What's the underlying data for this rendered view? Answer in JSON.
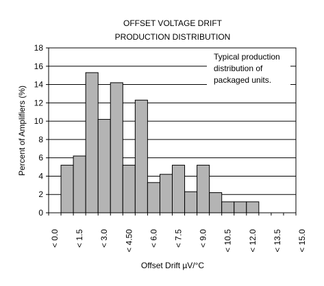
{
  "chart_data": {
    "type": "bar",
    "title": [
      "OFFSET VOLTAGE DRIFT",
      "PRODUCTION DISTRIBUTION"
    ],
    "xlabel": "Offset Drift µV/°C",
    "ylabel": "Percent of Amplifiers (%)",
    "ylim": [
      0,
      18
    ],
    "yticks": [
      0,
      2,
      4,
      6,
      8,
      10,
      12,
      14,
      16,
      18
    ],
    "grid": "horizontal",
    "bar_fill": "#b4b4b4",
    "bar_stroke": "#000000",
    "xtick_labels": [
      "< 0.0",
      "< 1.5",
      "< 3.0",
      "< 4.50",
      "< 6.0",
      "< 7.5",
      "< 9.0",
      "< 10.5",
      "< 12.0",
      "< 13.5",
      "< 15.0"
    ],
    "bins": 20,
    "values": [
      5.2,
      6.2,
      15.3,
      10.2,
      14.2,
      5.2,
      12.3,
      3.3,
      4.2,
      5.2,
      2.3,
      5.2,
      2.2,
      1.2,
      1.2,
      1.2,
      0,
      0,
      0,
      0
    ],
    "annotation": [
      "Typical production",
      "distribution of",
      "packaged units."
    ]
  }
}
